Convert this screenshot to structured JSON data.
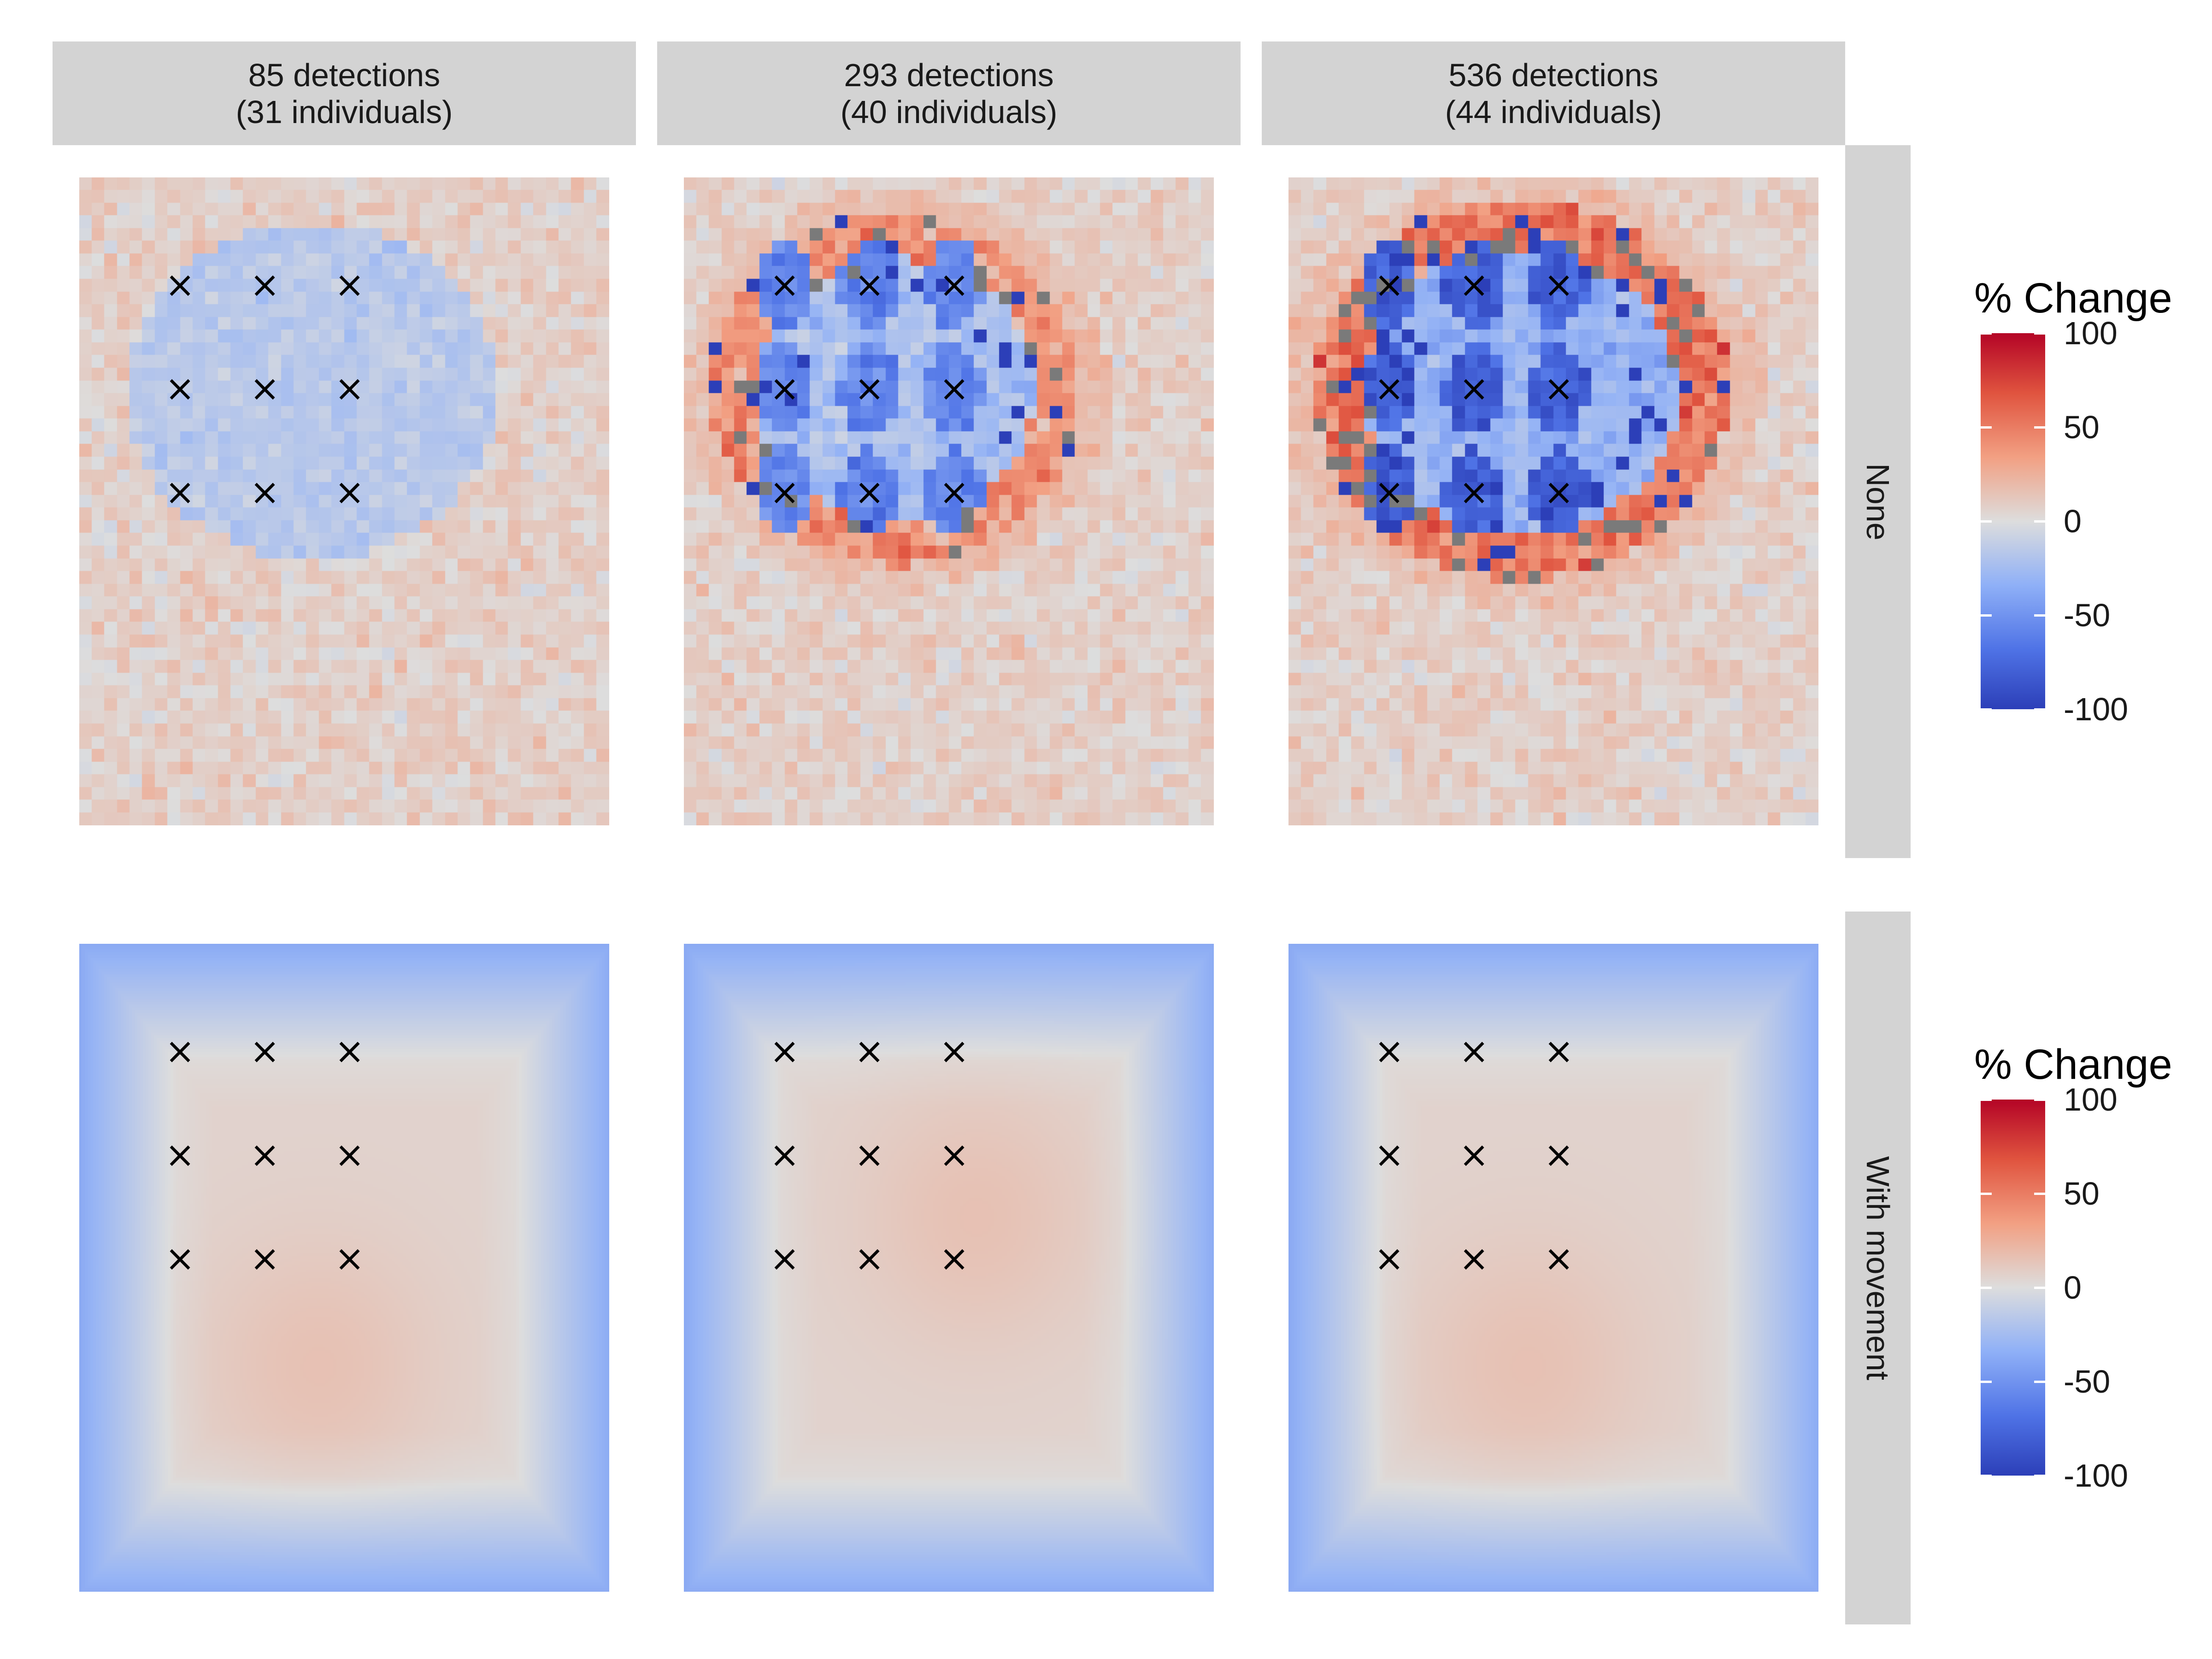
{
  "chart_data": {
    "type": "heatmap",
    "title": "",
    "columns": [
      {
        "strip_label": [
          "85 detections",
          "(31 individuals)"
        ]
      },
      {
        "strip_label": [
          "293 detections",
          "(40 individuals)"
        ]
      },
      {
        "strip_label": [
          "536 detections",
          "(44 individuals)"
        ]
      }
    ],
    "rows": [
      {
        "strip_label": "None"
      },
      {
        "strip_label": "With movement"
      }
    ],
    "color_scale": {
      "title": "% Change",
      "limits": [
        -100,
        100
      ],
      "ticks": [
        "100",
        "50",
        "0",
        "-50",
        "-100"
      ],
      "tick_values": [
        100,
        50,
        0,
        -50,
        -100
      ],
      "low_color": "#2c3fb8",
      "mid_color": "#dddddd",
      "high_color": "#b40426",
      "na_color": "#7a7a7a"
    },
    "traps": {
      "marker": "×",
      "grid": "3 x 3",
      "count_per_panel": 9
    }
  }
}
